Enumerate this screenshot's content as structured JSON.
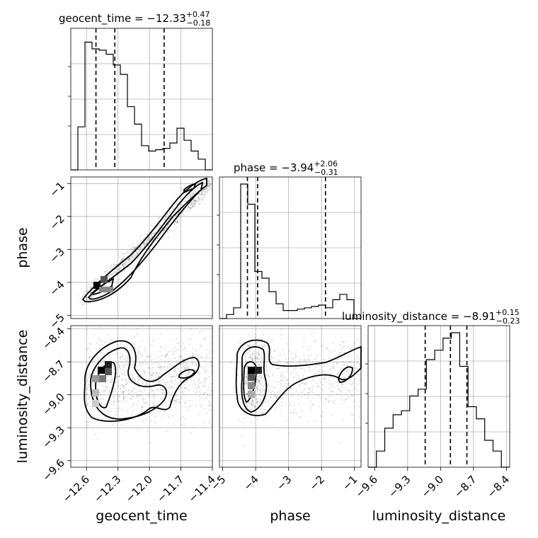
{
  "chart_data": {
    "type": "corner",
    "parameters": [
      {
        "name": "geocent_time",
        "label": "geocent_time",
        "median": "-12.33",
        "plus": "+0.47",
        "minus": "−0.18",
        "title_text": "geocent_time = −12.33",
        "range": [
          -12.75,
          -11.4
        ],
        "ticks": [
          -12.6,
          -12.3,
          -12.0,
          -11.7,
          -11.4
        ],
        "tick_labels": [
          "−12.6",
          "−12.3",
          "−12.0",
          "−11.7",
          "−11.4"
        ],
        "quantiles": [
          -12.51,
          -12.33,
          -11.86
        ],
        "hist": [
          0.0,
          0.32,
          0.95,
          0.9,
          0.89,
          0.86,
          0.78,
          0.71,
          0.47,
          0.34,
          0.18,
          0.14,
          0.15,
          0.16,
          0.2,
          0.31,
          0.22,
          0.14,
          0.08,
          0.0
        ]
      },
      {
        "name": "phase",
        "label": "phase",
        "median": "-3.94",
        "plus": "+2.06",
        "minus": "−0.31",
        "title_text": "phase = −3.94",
        "range": [
          -5.1,
          -0.8
        ],
        "ticks": [
          -5,
          -4,
          -3,
          -2,
          -1
        ],
        "tick_labels": [
          "−5",
          "−4",
          "−3",
          "−2",
          "−1"
        ],
        "quantiles": [
          -4.25,
          -3.94,
          -1.88
        ],
        "hist": [
          0.0,
          0.03,
          0.08,
          1.0,
          0.85,
          0.35,
          0.3,
          0.2,
          0.11,
          0.06,
          0.06,
          0.07,
          0.08,
          0.09,
          0.1,
          0.08,
          0.14,
          0.18,
          0.14,
          0.0
        ]
      },
      {
        "name": "luminosity_distance",
        "label": "luminosity_distance",
        "median": "-8.91",
        "plus": "+0.15",
        "minus": "−0.23",
        "title_text": "luminosity_distance = −8.91",
        "range": [
          -9.66,
          -8.37
        ],
        "ticks": [
          -9.6,
          -9.3,
          -9.0,
          -8.7,
          -8.4
        ],
        "tick_labels": [
          "−9.6",
          "−9.3",
          "−9.0",
          "−8.7",
          "−8.4"
        ],
        "quantiles": [
          -9.14,
          -8.91,
          -8.76
        ],
        "hist": [
          0.0,
          0.12,
          0.29,
          0.39,
          0.42,
          0.53,
          0.58,
          0.8,
          0.87,
          0.96,
          1.0,
          0.75,
          0.45,
          0.36,
          0.2,
          0.12,
          0.0
        ]
      }
    ],
    "contour_levels": [
      0.39,
      0.86,
      0.99
    ],
    "grid": true
  }
}
